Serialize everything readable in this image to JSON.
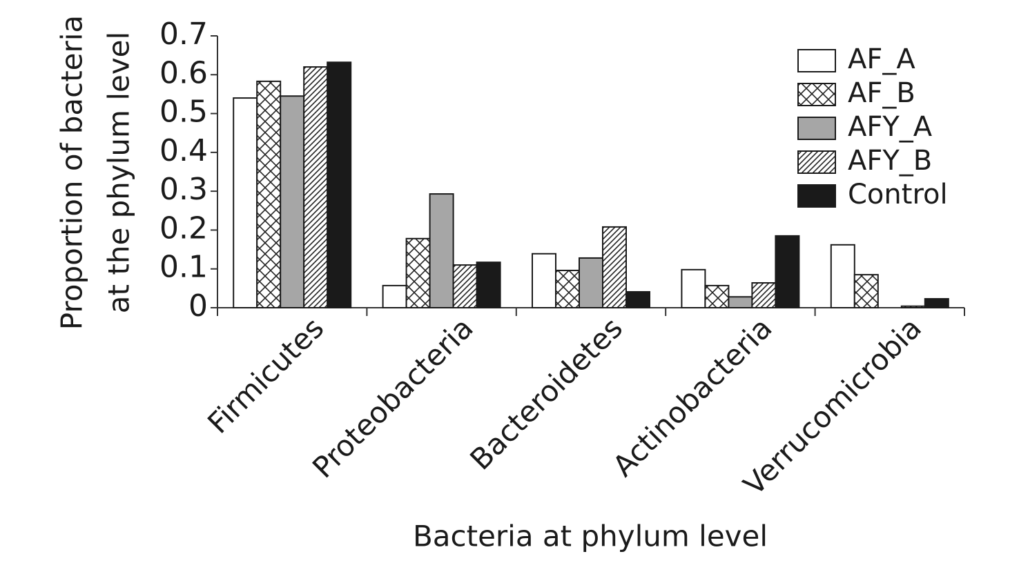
{
  "chart_data": {
    "type": "bar",
    "ylabel": [
      "Proportion of bacteria",
      "at the phylum level"
    ],
    "xlabel": "Bacteria at phylum level",
    "categories": [
      "Firmicutes",
      "Proteobacteria",
      "Bacteroidetes",
      "Actinobacteria",
      "Verrucomicrobia"
    ],
    "series": [
      {
        "name": "AF_A",
        "color": "#ffffff",
        "pattern": "none",
        "values": [
          0.54,
          0.057,
          0.139,
          0.098,
          0.162
        ]
      },
      {
        "name": "AF_B",
        "color": "#ffffff",
        "pattern": "crosshatch",
        "values": [
          0.583,
          0.178,
          0.096,
          0.057,
          0.085
        ]
      },
      {
        "name": "AFY_A",
        "color": "#a6a6a6",
        "pattern": "none",
        "values": [
          0.545,
          0.293,
          0.128,
          0.028,
          0
        ]
      },
      {
        "name": "AFY_B",
        "color": "#ffffff",
        "pattern": "diagonal",
        "values": [
          0.62,
          0.11,
          0.208,
          0.064,
          0.004
        ]
      },
      {
        "name": "Control",
        "color": "#1a1a1a",
        "pattern": "none",
        "values": [
          0.632,
          0.117,
          0.041,
          0.185,
          0.023
        ]
      }
    ],
    "ylim": [
      0,
      0.7
    ],
    "yticks": [
      0,
      0.1,
      0.2,
      0.3,
      0.4,
      0.5,
      0.6,
      0.7
    ],
    "grid": false,
    "legend": "upper right"
  }
}
